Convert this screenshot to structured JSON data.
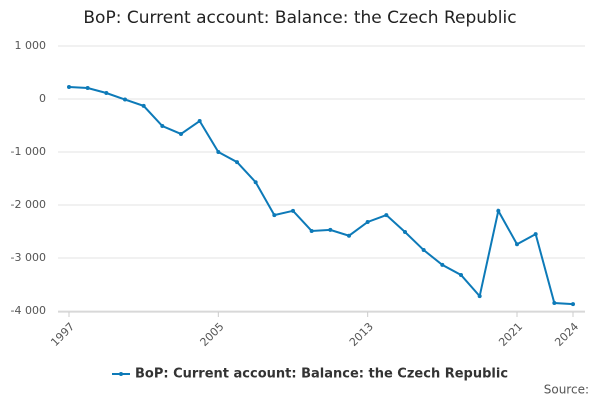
{
  "chart_data": {
    "type": "line",
    "title": "BoP: Current account: Balance: the Czech Republic",
    "x": [
      1997,
      1998,
      1999,
      2000,
      2001,
      2002,
      2003,
      2004,
      2005,
      2006,
      2007,
      2008,
      2009,
      2010,
      2011,
      2012,
      2013,
      2014,
      2015,
      2016,
      2017,
      2018,
      2019,
      2020,
      2021,
      2022,
      2023,
      2024
    ],
    "series": [
      {
        "name": "BoP: Current account: Balance: the Czech Republic",
        "color": "#0d7ab8",
        "values": [
          226,
          208,
          113,
          -10,
          -130,
          -510,
          -660,
          -415,
          -1000,
          -1190,
          -1570,
          -2190,
          -2110,
          -2490,
          -2470,
          -2580,
          -2320,
          -2190,
          -2510,
          -2850,
          -3130,
          -3320,
          -3720,
          -2110,
          -2740,
          -2550,
          -3850,
          -3870
        ]
      }
    ],
    "xlim": [
      1997,
      2024
    ],
    "xticks": [
      1997,
      2005,
      2013,
      2021,
      2024
    ],
    "ylim": [
      -4000,
      1000
    ],
    "yticks": [
      {
        "value": 1000,
        "label": "1 000"
      },
      0,
      {
        "value": -1000,
        "label": "-1 000"
      },
      {
        "value": -2000,
        "label": "-2 000"
      },
      {
        "value": -3000,
        "label": "-3 000"
      },
      {
        "value": -4000,
        "label": "-4 000"
      }
    ],
    "grid": true,
    "legend": "bottom",
    "source": "Source:"
  }
}
